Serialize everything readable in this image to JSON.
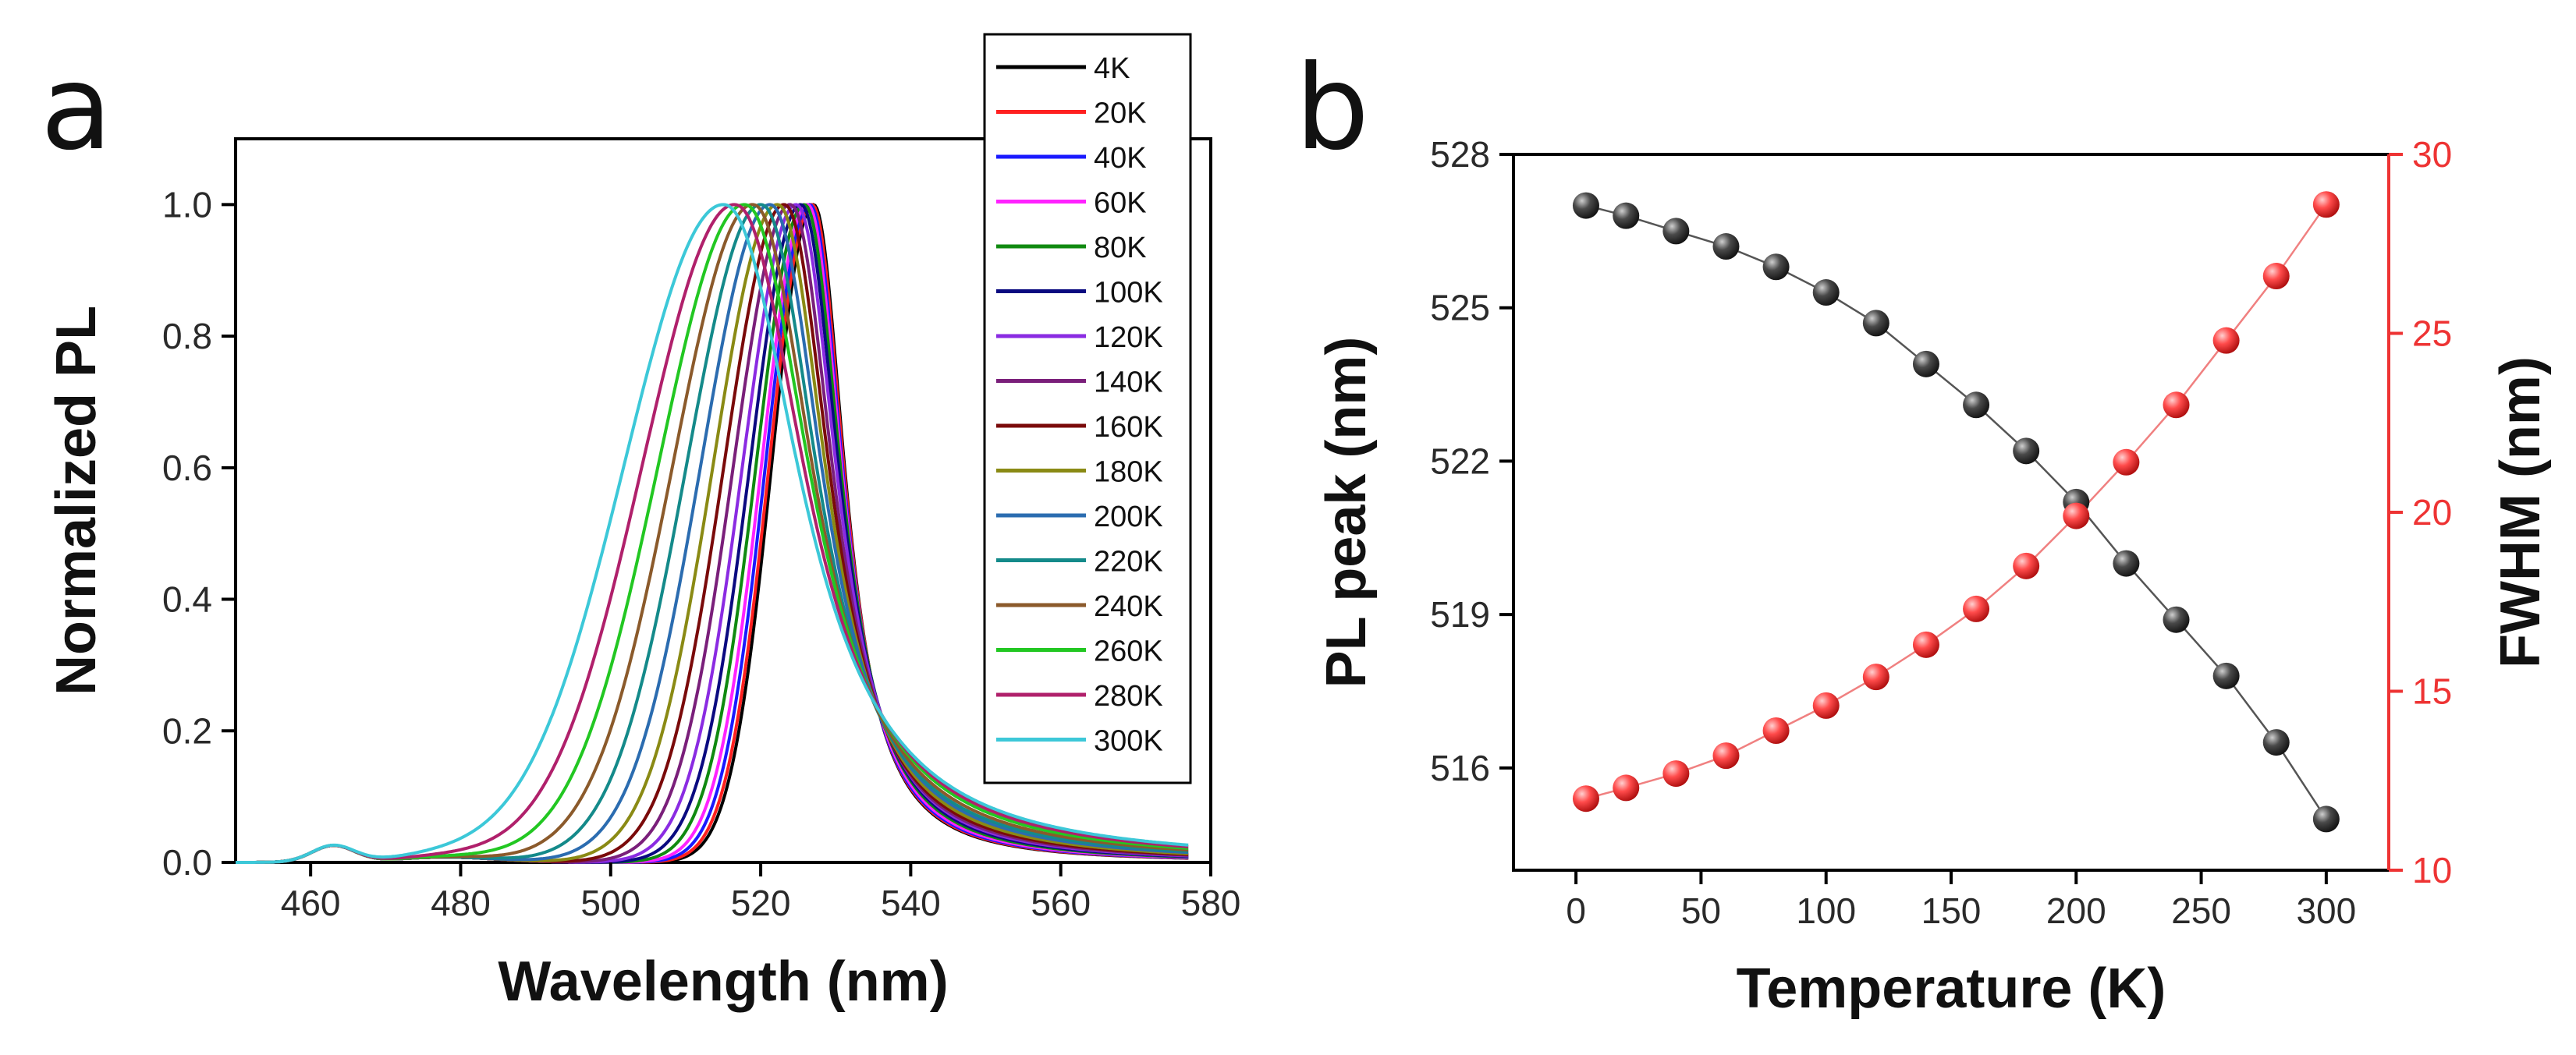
{
  "panel_a_letter": "a",
  "panel_b_letter": "b",
  "chart_data": [
    {
      "type": "line",
      "title": "",
      "xlabel": "Wavelength (nm)",
      "ylabel": "Normalized PL",
      "xlim": [
        450,
        580
      ],
      "ylim": [
        0,
        1.1
      ],
      "xticks": [
        460,
        480,
        500,
        520,
        540,
        560,
        580
      ],
      "yticks": [
        0.0,
        0.2,
        0.4,
        0.6,
        0.8,
        1.0
      ],
      "xtick_labels": [
        "460",
        "480",
        "500",
        "520",
        "540",
        "560",
        "580"
      ],
      "ytick_labels": [
        "0.0",
        "0.2",
        "0.4",
        "0.6",
        "0.8",
        "1.0"
      ],
      "legend_position": "top-right",
      "series": [
        {
          "name": "4K",
          "color": "#000000",
          "peak_nm": 527.0,
          "fwhm_nm": 12.0
        },
        {
          "name": "20K",
          "color": "#ff2020",
          "peak_nm": 526.8,
          "fwhm_nm": 12.3
        },
        {
          "name": "40K",
          "color": "#1a1aff",
          "peak_nm": 526.5,
          "fwhm_nm": 12.7
        },
        {
          "name": "60K",
          "color": "#ff22ff",
          "peak_nm": 526.2,
          "fwhm_nm": 13.2
        },
        {
          "name": "80K",
          "color": "#108a10",
          "peak_nm": 525.8,
          "fwhm_nm": 13.9
        },
        {
          "name": "100K",
          "color": "#0a0a80",
          "peak_nm": 525.3,
          "fwhm_nm": 14.6
        },
        {
          "name": "120K",
          "color": "#8a2be2",
          "peak_nm": 524.7,
          "fwhm_nm": 15.4
        },
        {
          "name": "140K",
          "color": "#7a1f7a",
          "peak_nm": 523.9,
          "fwhm_nm": 16.3
        },
        {
          "name": "160K",
          "color": "#7a0a0a",
          "peak_nm": 523.1,
          "fwhm_nm": 17.3
        },
        {
          "name": "180K",
          "color": "#8a8a14",
          "peak_nm": 522.2,
          "fwhm_nm": 18.5
        },
        {
          "name": "200K",
          "color": "#2b6cb0",
          "peak_nm": 521.2,
          "fwhm_nm": 19.9
        },
        {
          "name": "220K",
          "color": "#148a8a",
          "peak_nm": 520.0,
          "fwhm_nm": 21.4
        },
        {
          "name": "240K",
          "color": "#8b5a2b",
          "peak_nm": 518.9,
          "fwhm_nm": 23.0
        },
        {
          "name": "260K",
          "color": "#22c722",
          "peak_nm": 517.8,
          "fwhm_nm": 24.8
        },
        {
          "name": "280K",
          "color": "#b0206b",
          "peak_nm": 516.5,
          "fwhm_nm": 26.6
        },
        {
          "name": "300K",
          "color": "#3cc8d8",
          "peak_nm": 515.0,
          "fwhm_nm": 28.6
        }
      ]
    },
    {
      "type": "scatter",
      "title": "",
      "xlabel": "Temperature (K)",
      "ylabel": "PL peak (nm)",
      "y2label": "FWHM (nm)",
      "xlim": [
        -25,
        325
      ],
      "ylim": [
        514,
        528
      ],
      "y2lim": [
        10,
        30
      ],
      "xticks": [
        0,
        50,
        100,
        150,
        200,
        250,
        300
      ],
      "yticks": [
        516,
        519,
        522,
        525,
        528
      ],
      "y2ticks": [
        10,
        15,
        20,
        25,
        30
      ],
      "xtick_labels": [
        "0",
        "50",
        "100",
        "150",
        "200",
        "250",
        "300"
      ],
      "ytick_labels": [
        "516",
        "519",
        "522",
        "525",
        "528"
      ],
      "y2tick_labels": [
        "10",
        "15",
        "20",
        "25",
        "30"
      ],
      "x": [
        4,
        20,
        40,
        60,
        80,
        100,
        120,
        140,
        160,
        180,
        200,
        220,
        240,
        260,
        280,
        300
      ],
      "series": [
        {
          "name": "PL peak",
          "axis": "left",
          "color": "#3a3a3a",
          "values": [
            527.0,
            526.8,
            526.5,
            526.2,
            525.8,
            525.3,
            524.7,
            523.9,
            523.1,
            522.2,
            521.2,
            520.0,
            518.9,
            517.8,
            516.5,
            515.0
          ]
        },
        {
          "name": "FWHM",
          "axis": "right",
          "color": "#ee3333",
          "values": [
            12.0,
            12.3,
            12.7,
            13.2,
            13.9,
            14.6,
            15.4,
            16.3,
            17.3,
            18.5,
            19.9,
            21.4,
            23.0,
            24.8,
            26.6,
            28.6
          ]
        }
      ]
    }
  ]
}
